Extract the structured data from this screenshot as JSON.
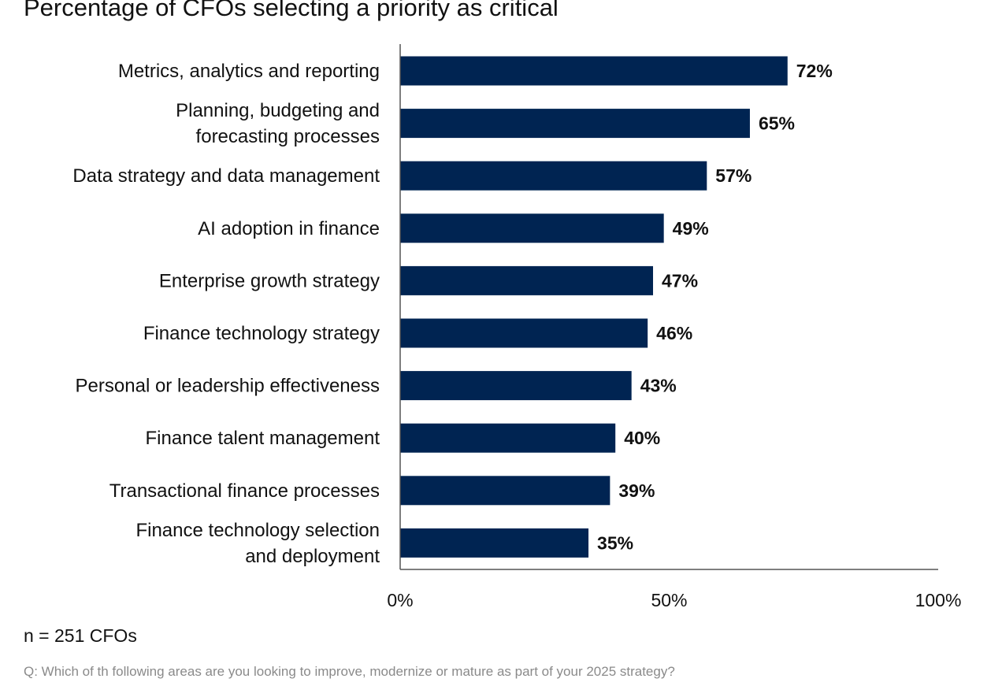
{
  "colors": {
    "bar": "#002452",
    "axis": "#555555",
    "text": "#111111"
  },
  "footer": {
    "sample": "n = 251 CFOs",
    "question": "Q: Which of th following areas are you looking to improve, modernize or mature as part of your 2025 strategy?"
  },
  "chart_data": {
    "type": "bar",
    "orientation": "horizontal",
    "title": "Percentage of CFOs selecting a priority as critical",
    "categories": [
      [
        "Metrics, analytics and reporting"
      ],
      [
        "Planning, budgeting and",
        "forecasting processes"
      ],
      [
        "Data strategy and data management"
      ],
      [
        "AI adoption in finance"
      ],
      [
        "Enterprise growth strategy"
      ],
      [
        "Finance technology strategy"
      ],
      [
        "Personal or leadership effectiveness"
      ],
      [
        "Finance talent management"
      ],
      [
        "Transactional finance processes"
      ],
      [
        "Finance technology selection",
        "and deployment"
      ]
    ],
    "values": [
      72,
      65,
      57,
      49,
      47,
      46,
      43,
      40,
      39,
      35
    ],
    "value_labels": [
      "72%",
      "65%",
      "57%",
      "49%",
      "47%",
      "46%",
      "43%",
      "40%",
      "39%",
      "35%"
    ],
    "xlim": [
      0,
      100
    ],
    "xticks": [
      0,
      50,
      100
    ],
    "xtick_labels": [
      "0%",
      "50%",
      "100%"
    ],
    "xlabel": "",
    "ylabel": "",
    "grid": false,
    "legend": "none"
  }
}
